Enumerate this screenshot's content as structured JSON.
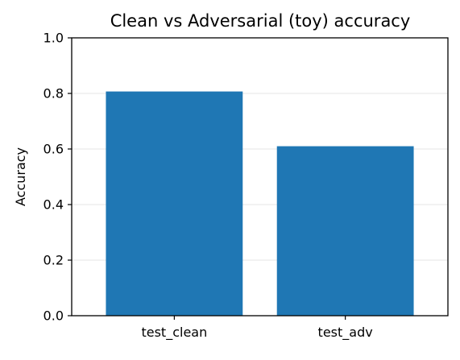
{
  "chart_data": {
    "type": "bar",
    "title": "Clean vs Adversarial (toy) accuracy",
    "xlabel": "",
    "ylabel": "Accuracy",
    "categories": [
      "test_clean",
      "test_adv"
    ],
    "values": [
      0.807,
      0.61
    ],
    "ylim": [
      0,
      1
    ],
    "yticks": [
      "0.0",
      "0.2",
      "0.4",
      "0.6",
      "0.8",
      "1.0"
    ],
    "grid": "horizontal",
    "legend": "none",
    "bar_color": "#1f77b4",
    "grid_color": "#e6e6e6"
  }
}
